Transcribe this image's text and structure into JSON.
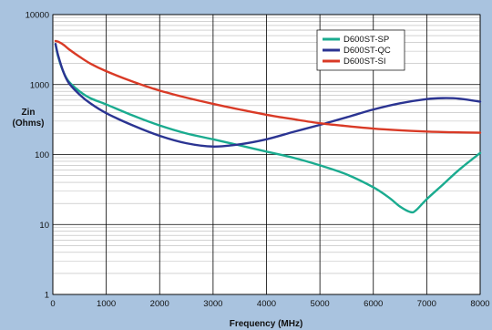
{
  "chart_data": {
    "type": "line",
    "title": "",
    "xlabel": "Frequency (MHz)",
    "ylabel_lines": [
      "Zin",
      "(Ohms)"
    ],
    "xlim": [
      0,
      8000
    ],
    "ylim": [
      1,
      10000
    ],
    "yscale": "log",
    "grid": true,
    "legend_position": "top-right",
    "x_ticks": [
      0,
      1000,
      2000,
      3000,
      4000,
      5000,
      6000,
      7000,
      8000
    ],
    "y_ticks": [
      1,
      10,
      100,
      1000,
      10000
    ],
    "x_tick_labels": [
      "0",
      "1000",
      "2000",
      "3000",
      "4000",
      "5000",
      "6000",
      "7000",
      "8000"
    ],
    "y_tick_labels": [
      "1",
      "10",
      "100",
      "1000",
      "10000"
    ],
    "series": [
      {
        "name": "D600ST-SP",
        "color": "#1aab8f",
        "x": [
          50,
          100,
          200,
          300,
          500,
          700,
          1000,
          1500,
          2000,
          2500,
          3000,
          3500,
          4000,
          4500,
          5000,
          5500,
          6000,
          6300,
          6500,
          6700,
          6800,
          7000,
          7300,
          7600,
          8000
        ],
        "y": [
          3800,
          2500,
          1500,
          1100,
          800,
          640,
          520,
          360,
          260,
          200,
          165,
          135,
          110,
          90,
          70,
          52,
          34,
          24,
          18,
          15,
          16,
          23,
          37,
          60,
          105
        ]
      },
      {
        "name": "D600ST-QC",
        "color": "#2b3492",
        "x": [
          50,
          100,
          200,
          300,
          500,
          700,
          1000,
          1500,
          2000,
          2500,
          3000,
          3500,
          4000,
          4500,
          5000,
          5500,
          6000,
          6500,
          7000,
          7300,
          7600,
          8000
        ],
        "y": [
          3800,
          2600,
          1500,
          1050,
          720,
          540,
          390,
          260,
          185,
          145,
          130,
          140,
          165,
          210,
          265,
          340,
          440,
          540,
          620,
          640,
          630,
          570
        ]
      },
      {
        "name": "D600ST-SI",
        "color": "#d93a26",
        "x": [
          50,
          100,
          200,
          300,
          500,
          700,
          1000,
          1500,
          2000,
          2500,
          3000,
          3500,
          4000,
          4500,
          5000,
          5500,
          6000,
          6500,
          7000,
          7500,
          8000
        ],
        "y": [
          4200,
          4100,
          3700,
          3200,
          2500,
          2000,
          1550,
          1100,
          820,
          650,
          530,
          440,
          370,
          320,
          280,
          255,
          235,
          222,
          213,
          208,
          205
        ]
      }
    ]
  }
}
